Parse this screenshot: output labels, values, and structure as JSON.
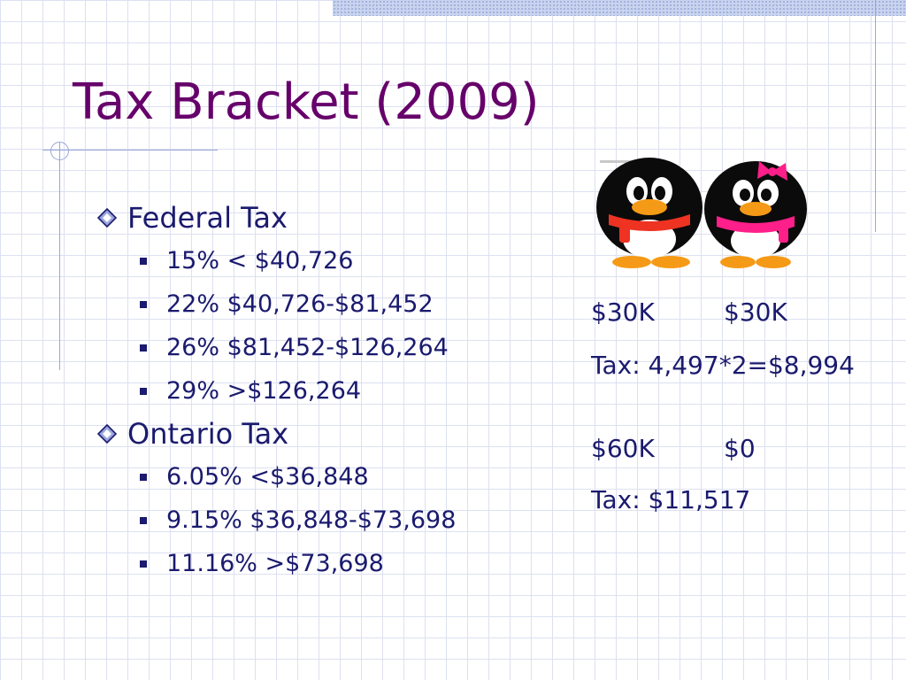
{
  "slide": {
    "title": "Tax Bracket (2009)",
    "sections": [
      {
        "heading": "Federal Tax",
        "items": [
          "15% < $40,726",
          "22% $40,726-$81,452",
          "26% $81,452-$126,264",
          "29% >$126,264"
        ]
      },
      {
        "heading": "Ontario Tax",
        "items": [
          "6.05% <$36,848",
          "9.15% $36,848-$73,698",
          "11.16% >$73,698"
        ]
      }
    ],
    "example1": {
      "income_a": "$30K",
      "income_b": "$30K",
      "tax": "Tax: 4,497*2=$8,994"
    },
    "example2": {
      "income_a": "$60K",
      "income_b": "$0",
      "tax": "Tax: $11,517"
    }
  },
  "colors": {
    "title": "#66006a",
    "text": "#1a1a6e",
    "grid": "#dde0f0"
  },
  "icons": [
    "diamond-bullet-icon",
    "square-bullet-icon",
    "penguin-couple-illustration"
  ]
}
